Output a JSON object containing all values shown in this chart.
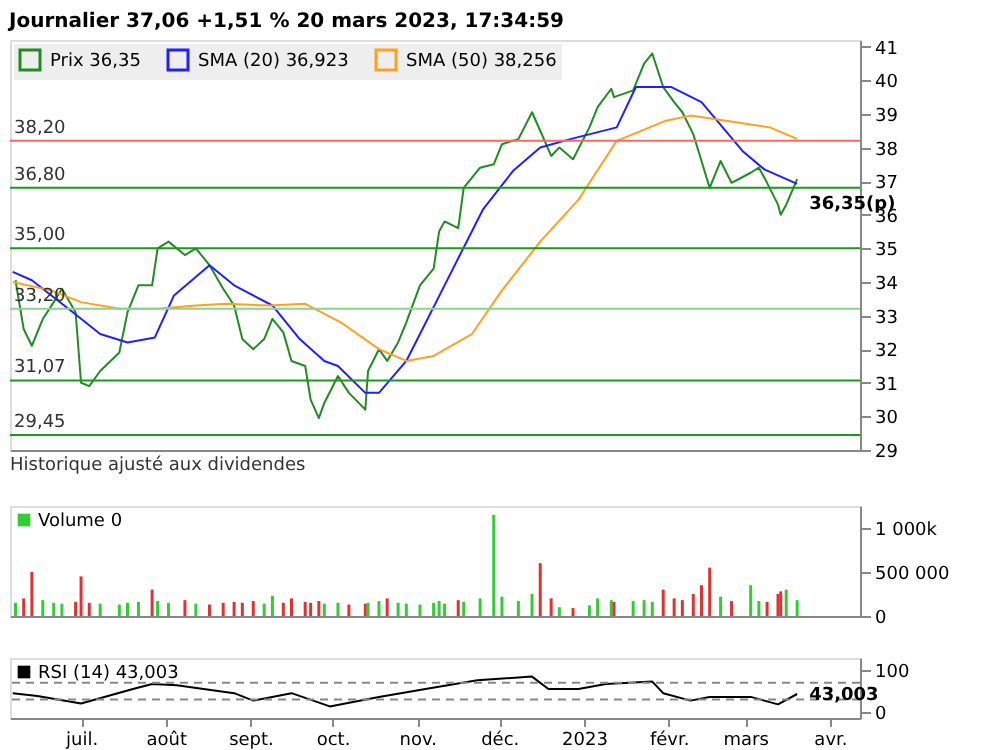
{
  "chart_data": [
    {
      "type": "line",
      "title": "Journalier 37,06 +1,51 % 20 mars 2023, 17:34:59",
      "xlim": [
        "2022-06-05",
        "2023-04-12"
      ],
      "ylim": [
        29,
        41.2
      ],
      "yticks": [
        29,
        30,
        31,
        32,
        33,
        34,
        35,
        36,
        37,
        38,
        39,
        40,
        41
      ],
      "tick_labels": "y",
      "legend": "top left",
      "series": [
        {
          "name": "Prix 36,35",
          "color": "#228b22",
          "x": [
            "2022-06-07",
            "2022-06-10",
            "2022-06-13",
            "2022-06-17",
            "2022-06-21",
            "2022-06-24",
            "2022-06-29",
            "2022-07-01",
            "2022-07-04",
            "2022-07-08",
            "2022-07-15",
            "2022-07-18",
            "2022-07-22",
            "2022-07-27",
            "2022-07-29",
            "2022-08-02",
            "2022-08-08",
            "2022-08-12",
            "2022-08-17",
            "2022-08-22",
            "2022-08-26",
            "2022-08-29",
            "2022-09-02",
            "2022-09-06",
            "2022-09-09",
            "2022-09-13",
            "2022-09-16",
            "2022-09-21",
            "2022-09-23",
            "2022-09-26",
            "2022-09-28",
            "2022-10-03",
            "2022-10-07",
            "2022-10-13",
            "2022-10-14",
            "2022-10-18",
            "2022-10-21",
            "2022-10-25",
            "2022-10-28",
            "2022-11-02",
            "2022-11-07",
            "2022-11-09",
            "2022-11-11",
            "2022-11-16",
            "2022-11-18",
            "2022-11-24",
            "2022-11-29",
            "2022-12-02",
            "2022-12-08",
            "2022-12-13",
            "2022-12-16",
            "2022-12-20",
            "2022-12-23",
            "2022-12-28",
            "2023-01-03",
            "2023-01-06",
            "2023-01-11",
            "2023-01-12",
            "2023-01-19",
            "2023-01-23",
            "2023-01-26",
            "2023-01-30",
            "2023-02-03",
            "2023-02-06",
            "2023-02-10",
            "2023-02-13",
            "2023-02-16",
            "2023-02-20",
            "2023-02-24",
            "2023-03-03",
            "2023-03-06",
            "2023-03-09",
            "2023-03-13",
            "2023-03-14",
            "2023-03-16",
            "2023-03-20"
          ],
          "values": [
            34.05,
            32.6,
            32.1,
            32.9,
            33.4,
            33.8,
            33.1,
            31.0,
            30.9,
            31.35,
            31.9,
            33.1,
            33.9,
            33.9,
            35.0,
            35.2,
            34.8,
            35.0,
            34.5,
            33.8,
            33.3,
            32.3,
            32.0,
            32.3,
            32.9,
            32.5,
            31.65,
            31.5,
            30.5,
            29.95,
            30.4,
            31.2,
            30.7,
            30.2,
            31.35,
            32.0,
            31.65,
            32.2,
            32.8,
            33.9,
            34.4,
            35.5,
            35.8,
            35.6,
            36.8,
            37.4,
            37.5,
            38.1,
            38.25,
            39.05,
            38.5,
            37.75,
            38.0,
            37.65,
            38.6,
            39.2,
            39.75,
            39.5,
            39.7,
            40.5,
            40.8,
            39.8,
            39.35,
            39.05,
            38.4,
            37.6,
            36.8,
            37.6,
            36.95,
            37.25,
            37.4,
            36.95,
            36.3,
            36.0,
            36.3,
            37.06
          ]
        },
        {
          "name": "SMA (20) 36,923",
          "color": "#2020ff",
          "x": [
            "2022-06-06",
            "2022-06-13",
            "2022-06-28",
            "2022-07-08",
            "2022-07-18",
            "2022-07-28",
            "2022-08-04",
            "2022-08-17",
            "2022-08-26",
            "2022-09-09",
            "2022-09-19",
            "2022-09-28",
            "2022-10-03",
            "2022-10-13",
            "2022-10-18",
            "2022-10-28",
            "2022-11-11",
            "2022-11-25",
            "2022-12-06",
            "2022-12-16",
            "2022-12-27",
            "2023-01-13",
            "2023-01-20",
            "2023-02-02",
            "2023-02-13",
            "2023-02-28",
            "2023-03-08",
            "2023-03-20"
          ],
          "values": [
            34.3,
            34.05,
            33.1,
            32.45,
            32.2,
            32.35,
            33.6,
            34.5,
            33.9,
            33.3,
            32.3,
            31.65,
            31.5,
            30.7,
            30.7,
            31.65,
            33.9,
            36.15,
            37.3,
            38.0,
            38.25,
            38.6,
            39.8,
            39.8,
            39.35,
            37.9,
            37.35,
            36.92
          ]
        },
        {
          "name": "SMA (50) 38,256",
          "color": "#ffa020",
          "x": [
            "2022-06-06",
            "2022-06-20",
            "2022-07-01",
            "2022-07-15",
            "2022-07-29",
            "2022-08-12",
            "2022-08-23",
            "2022-09-08",
            "2022-09-21",
            "2022-10-04",
            "2022-10-18",
            "2022-10-28",
            "2022-11-07",
            "2022-11-21",
            "2022-12-02",
            "2022-12-16",
            "2022-12-30",
            "2023-01-13",
            "2023-01-31",
            "2023-02-09",
            "2023-02-22",
            "2023-03-10",
            "2023-03-20"
          ],
          "values": [
            34.0,
            33.75,
            33.4,
            33.2,
            33.2,
            33.3,
            33.35,
            33.3,
            33.35,
            32.8,
            32.0,
            31.65,
            31.8,
            32.45,
            33.75,
            35.2,
            36.45,
            38.2,
            38.8,
            38.95,
            38.8,
            38.6,
            38.26
          ]
        }
      ],
      "ref_lines": [
        {
          "axis": "y",
          "value": 38.2,
          "label": "38,20",
          "color": "#ff6666",
          "line_style": "solid"
        },
        {
          "axis": "y",
          "value": 36.8,
          "label": "36,80",
          "color": "#1a9a1a",
          "line_style": "solid"
        },
        {
          "axis": "y",
          "value": 35.0,
          "label": "35,00",
          "color": "#1a9a1a",
          "line_style": "solid"
        },
        {
          "axis": "y",
          "value": 33.2,
          "label": "33,20",
          "color": "#90d090",
          "line_style": "solid"
        },
        {
          "axis": "y",
          "value": 31.07,
          "label": "31,07",
          "color": "#1a9a1a",
          "line_style": "solid"
        },
        {
          "axis": "y",
          "value": 29.45,
          "label": "29,45",
          "color": "#1a9a1a",
          "line_style": "solid"
        }
      ],
      "annotations": [
        {
          "text": "36,35(p)",
          "x": "2023-03-20",
          "y": 36.35
        },
        "Historique ajusté aux dividendes"
      ]
    },
    {
      "type": "bar",
      "xlim": [
        "2022-06-05",
        "2023-04-12"
      ],
      "ylim": [
        0,
        1250000
      ],
      "yticks": [
        0,
        {
          "value": 500000,
          "label": "500 000"
        },
        {
          "value": 1000000,
          "label": "1 000k"
        }
      ],
      "tick_labels": "y",
      "legend": "top left",
      "x": [
        "2022-06-07",
        "2022-06-10",
        "2022-06-13",
        "2022-06-17",
        "2022-06-21",
        "2022-06-24",
        "2022-06-29",
        "2022-07-01",
        "2022-07-04",
        "2022-07-08",
        "2022-07-15",
        "2022-07-18",
        "2022-07-22",
        "2022-07-27",
        "2022-07-29",
        "2022-08-02",
        "2022-08-08",
        "2022-08-12",
        "2022-08-17",
        "2022-08-22",
        "2022-08-26",
        "2022-08-29",
        "2022-09-02",
        "2022-09-06",
        "2022-09-09",
        "2022-09-13",
        "2022-09-16",
        "2022-09-21",
        "2022-09-23",
        "2022-09-26",
        "2022-09-28",
        "2022-10-03",
        "2022-10-07",
        "2022-10-13",
        "2022-10-14",
        "2022-10-18",
        "2022-10-21",
        "2022-10-25",
        "2022-10-28",
        "2022-11-02",
        "2022-11-07",
        "2022-11-09",
        "2022-11-11",
        "2022-11-16",
        "2022-11-18",
        "2022-11-24",
        "2022-11-29",
        "2022-12-02",
        "2022-12-08",
        "2022-12-13",
        "2022-12-16",
        "2022-12-20",
        "2022-12-23",
        "2022-12-28",
        "2023-01-03",
        "2023-01-06",
        "2023-01-11",
        "2023-01-12",
        "2023-01-19",
        "2023-01-23",
        "2023-01-26",
        "2023-01-30",
        "2023-02-03",
        "2023-02-06",
        "2023-02-10",
        "2023-02-13",
        "2023-02-16",
        "2023-02-20",
        "2023-02-24",
        "2023-03-03",
        "2023-03-06",
        "2023-03-09",
        "2023-03-13",
        "2023-03-14",
        "2023-03-16",
        "2023-03-20"
      ],
      "series": [
        {
          "name": "Volume 0",
          "values": [
            150000,
            200000,
            500000,
            180000,
            150000,
            140000,
            160000,
            450000,
            150000,
            140000,
            130000,
            150000,
            160000,
            300000,
            170000,
            150000,
            180000,
            140000,
            130000,
            150000,
            160000,
            150000,
            170000,
            140000,
            230000,
            150000,
            200000,
            160000,
            150000,
            170000,
            140000,
            150000,
            130000,
            140000,
            150000,
            170000,
            200000,
            150000,
            140000,
            130000,
            150000,
            170000,
            140000,
            180000,
            160000,
            200000,
            1150000,
            220000,
            170000,
            250000,
            600000,
            200000,
            100000,
            90000,
            120000,
            200000,
            180000,
            160000,
            170000,
            180000,
            160000,
            300000,
            200000,
            180000,
            250000,
            350000,
            550000,
            220000,
            170000,
            350000,
            170000,
            160000,
            250000,
            280000,
            300000,
            180000
          ],
          "colors": [
            "#33cc33",
            "#dd3333",
            "#dd3333",
            "#33cc33",
            "#33cc33",
            "#33cc33",
            "#dd3333",
            "#dd3333",
            "#dd3333",
            "#33cc33",
            "#33cc33",
            "#33cc33",
            "#33cc33",
            "#dd3333",
            "#33cc33",
            "#33cc33",
            "#dd3333",
            "#33cc33",
            "#dd3333",
            "#dd3333",
            "#dd3333",
            "#dd3333",
            "#dd3333",
            "#33cc33",
            "#33cc33",
            "#dd3333",
            "#dd3333",
            "#dd3333",
            "#dd3333",
            "#dd3333",
            "#33cc33",
            "#33cc33",
            "#dd3333",
            "#dd3333",
            "#33cc33",
            "#33cc33",
            "#dd3333",
            "#33cc33",
            "#33cc33",
            "#33cc33",
            "#33cc33",
            "#33cc33",
            "#33cc33",
            "#dd3333",
            "#33cc33",
            "#33cc33",
            "#33cc33",
            "#33cc33",
            "#33cc33",
            "#33cc33",
            "#dd3333",
            "#dd3333",
            "#33cc33",
            "#dd3333",
            "#33cc33",
            "#33cc33",
            "#33cc33",
            "#dd3333",
            "#33cc33",
            "#33cc33",
            "#33cc33",
            "#dd3333",
            "#dd3333",
            "#dd3333",
            "#dd3333",
            "#dd3333",
            "#dd3333",
            "#33cc33",
            "#dd3333",
            "#33cc33",
            "#33cc33",
            "#dd3333",
            "#dd3333",
            "#dd3333",
            "#33cc33",
            "#33cc33"
          ]
        }
      ]
    },
    {
      "type": "line",
      "xlim": [
        "2022-06-05",
        "2023-04-12"
      ],
      "xticks": [
        {
          "value": "2022-07-01",
          "label": "juil."
        },
        {
          "value": "2022-08-01",
          "label": "août"
        },
        {
          "value": "2022-09-01",
          "label": "sept."
        },
        {
          "value": "2022-10-01",
          "label": "oct."
        },
        {
          "value": "2022-11-01",
          "label": "nov."
        },
        {
          "value": "2022-12-01",
          "label": "déc."
        },
        {
          "value": "2023-01-01",
          "label": "2023"
        },
        {
          "value": "2023-02-01",
          "label": "févr."
        },
        {
          "value": "2023-03-01",
          "label": "mars"
        },
        {
          "value": "2023-04-01",
          "label": "avr."
        }
      ],
      "ylim": [
        -15,
        130
      ],
      "yticks": [
        0,
        100
      ],
      "legend": "top left",
      "series": [
        {
          "name": "RSI (14) 43,003",
          "color": "#000000",
          "x": [
            "2022-06-06",
            "2022-06-15",
            "2022-07-01",
            "2022-07-20",
            "2022-07-27",
            "2022-08-05",
            "2022-08-26",
            "2022-09-02",
            "2022-09-16",
            "2022-09-30",
            "2022-10-18",
            "2022-11-04",
            "2022-11-23",
            "2022-12-13",
            "2022-12-19",
            "2022-12-30",
            "2023-01-09",
            "2023-01-26",
            "2023-01-30",
            "2023-02-09",
            "2023-02-16",
            "2023-03-03",
            "2023-03-13",
            "2023-03-20"
          ],
          "values": [
            45,
            38,
            20,
            55,
            67,
            64,
            45,
            27,
            45,
            13,
            36,
            55,
            76,
            85,
            55,
            55,
            67,
            73,
            45,
            27,
            36,
            36,
            18,
            43
          ]
        }
      ],
      "ref_lines": [
        {
          "axis": "y",
          "value": 70,
          "color": "#888888",
          "line_style": "dashed"
        },
        {
          "axis": "y",
          "value": 30,
          "color": "#888888",
          "line_style": "dashed"
        }
      ],
      "annotations": [
        {
          "text": "43,003",
          "x": "2023-03-20",
          "y": 43
        }
      ]
    }
  ]
}
